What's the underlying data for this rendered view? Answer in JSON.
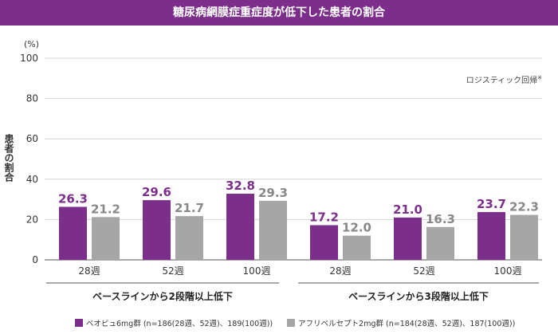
{
  "title": "糖尿病網膜症重症度が低下した患者の割合",
  "chart_data": {
    "type": "bar",
    "ylabel": "患者の割合",
    "unit": "(%)",
    "ylim": [
      0,
      100
    ],
    "yticks": [
      "0",
      "20",
      "40",
      "60",
      "80",
      "100"
    ],
    "annotation": "ロジスティック回帰",
    "annotation_mark": "※",
    "groups": [
      {
        "label": "ベースラインから2段階以上低下",
        "categories": [
          "28週",
          "52週",
          "100週"
        ],
        "series": [
          {
            "values": [
              26.3,
              29.6,
              32.8
            ],
            "labels": [
              "26.3",
              "29.6",
              "32.8"
            ]
          },
          {
            "values": [
              21.2,
              21.7,
              29.3
            ],
            "labels": [
              "21.2",
              "21.7",
              "29.3"
            ]
          }
        ]
      },
      {
        "label": "ベースラインから3段階以上低下",
        "categories": [
          "28週",
          "52週",
          "100週"
        ],
        "series": [
          {
            "values": [
              17.2,
              21.0,
              23.7
            ],
            "labels": [
              "17.2",
              "21.0",
              "23.7"
            ]
          },
          {
            "values": [
              12.0,
              16.3,
              22.3
            ],
            "labels": [
              "12.0",
              "16.3",
              "22.3"
            ]
          }
        ]
      }
    ],
    "legend": [
      {
        "name": "ベオビュ6mg群 (n=186(28週、52週)、189(100週))",
        "color": "#7b2f8b"
      },
      {
        "name": "アフリベルセプト2mg群 (n=184(28週、52週)、187(100週))",
        "color": "#a6a6a6"
      }
    ],
    "colors": {
      "series1": "#7b2f8b",
      "series2": "#a6a6a6",
      "label1": "#7b2f8b",
      "label2": "#888888"
    }
  }
}
